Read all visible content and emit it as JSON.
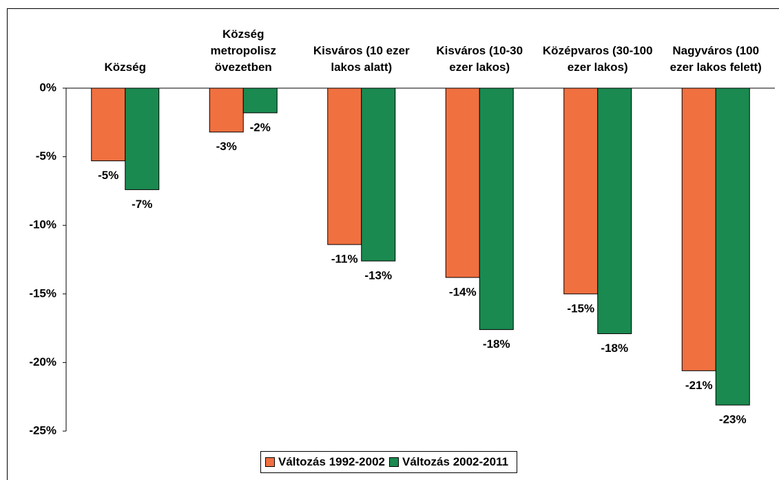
{
  "chart_data": {
    "type": "bar",
    "categories": [
      "Község",
      "Község metropolisz övezetben",
      "Kisváros (10 ezer lakos alatt)",
      "Kisváros (10-30 ezer lakos)",
      "Középvaros (30-100 ezer lakos)",
      "Nagyváros (100 ezer lakos felett)"
    ],
    "series": [
      {
        "name": "Változás 1992-2002",
        "color": "#f07040",
        "values": [
          -5.3,
          -3.2,
          -11.4,
          -13.8,
          -15.0,
          -20.6
        ],
        "value_labels": [
          "-5%",
          "-3%",
          "-11%",
          "-14%",
          "-15%",
          "-21%"
        ]
      },
      {
        "name": "Változás 2002-2011",
        "color": "#1a8a50",
        "values": [
          -7.4,
          -1.8,
          -12.6,
          -17.6,
          -17.9,
          -23.1
        ],
        "value_labels": [
          "-7%",
          "-2%",
          "-13%",
          "-18%",
          "-18%",
          "-23%"
        ]
      }
    ],
    "ylim": [
      -25,
      0
    ],
    "yticks": [
      {
        "value": 0,
        "label": "0%"
      },
      {
        "value": -5,
        "label": "-5%"
      },
      {
        "value": -10,
        "label": "-10%"
      },
      {
        "value": -15,
        "label": "-15%"
      },
      {
        "value": -20,
        "label": "-20%"
      },
      {
        "value": -25,
        "label": "-25%"
      }
    ],
    "grid": false
  }
}
